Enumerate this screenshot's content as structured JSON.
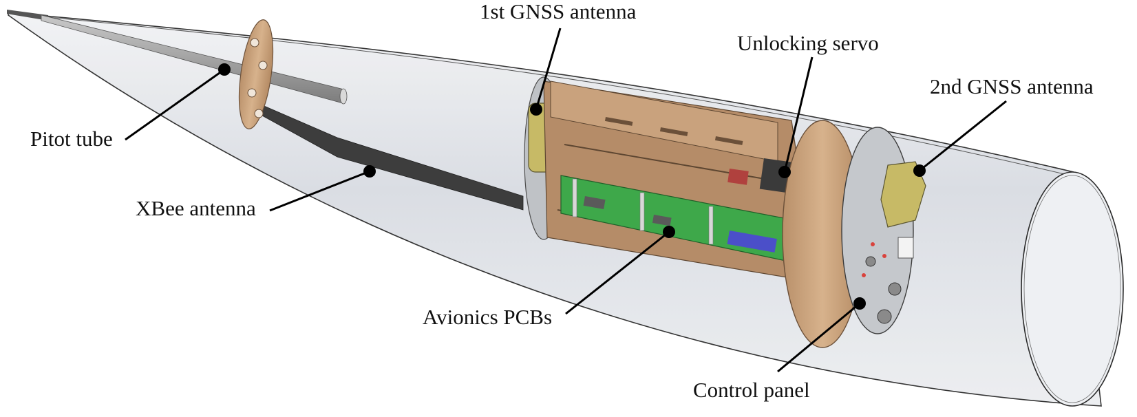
{
  "labels": {
    "gnss1": "1st GNSS antenna",
    "servo": "Unlocking servo",
    "gnss2": "2nd GNSS antenna",
    "pitot": "Pitot tube",
    "xbee": "XBee antenna",
    "avionics": "Avionics PCBs",
    "control": "Control panel"
  },
  "colors": {
    "shell_fill": "#e6e8ec",
    "shell_stroke": "#2a2a2a",
    "wood": "#c8a07a",
    "wood_dark": "#8a6a4e",
    "pcb_green": "#3fa94a",
    "antenna_yellow": "#c9bc6a",
    "antenna_dark": "#4a4a4a",
    "leader": "#000000"
  }
}
